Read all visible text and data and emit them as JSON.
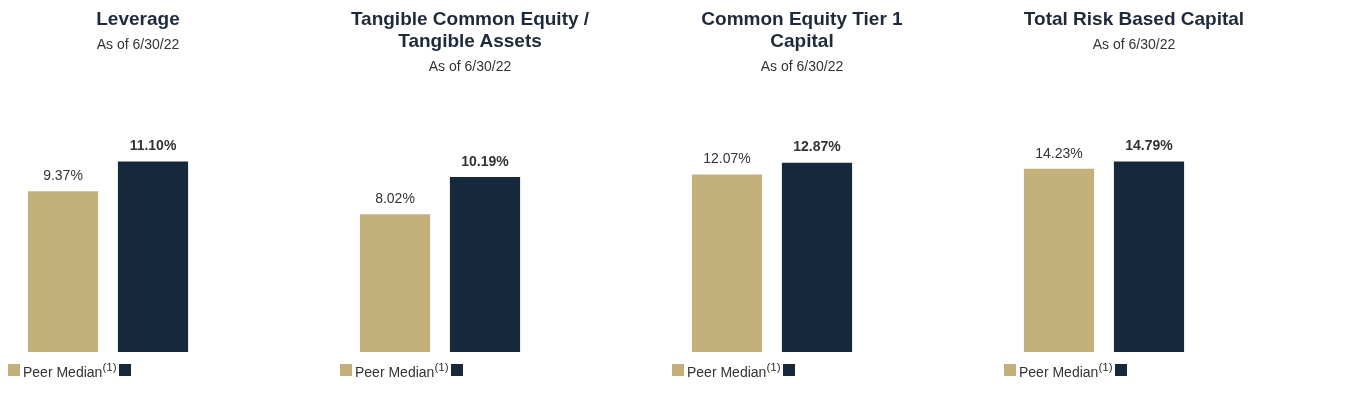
{
  "chart_data": [
    {
      "type": "bar",
      "title": "Leverage",
      "subtitle": "As of 6/30/22",
      "categories": [
        null
      ],
      "legend": "bottom",
      "series": [
        {
          "name": "Peer Median$^{(1)}$",
          "color": "#c3b07a",
          "values": [
            9.37
          ],
          "value_labels": [
            "9.37%"
          ]
        },
        {
          "color": "#16283c",
          "values": [
            11.1
          ],
          "value_labels": [
            "11.10%"
          ]
        }
      ]
    },
    {
      "type": "bar",
      "title": "Tangible Common Equity / Tangible Assets",
      "subtitle": "As of 6/30/22",
      "categories": [
        null
      ],
      "legend": "bottom",
      "series": [
        {
          "name": "Peer Median$^{(1)}$",
          "color": "#c3b07a",
          "values": [
            8.02
          ],
          "value_labels": [
            "8.02%"
          ]
        },
        {
          "color": "#16283c",
          "values": [
            10.19
          ],
          "value_labels": [
            "10.19%"
          ]
        }
      ]
    },
    {
      "type": "bar",
      "title": "Common Equity Tier 1 Capital",
      "subtitle": "As of 6/30/22",
      "categories": [
        null
      ],
      "legend": "bottom",
      "series": [
        {
          "name": "Peer Median$^{(1)}$",
          "color": "#c3b07a",
          "values": [
            12.07
          ],
          "value_labels": [
            "12.07%"
          ]
        },
        {
          "color": "#16283c",
          "values": [
            12.87
          ],
          "value_labels": [
            "12.87%"
          ]
        }
      ]
    },
    {
      "type": "bar",
      "title": "Total Risk Based Capital",
      "subtitle": "As of 6/30/22",
      "categories": [
        null
      ],
      "legend": "bottom",
      "series": [
        {
          "name": "Peer Median$^{(1)}$",
          "color": "#c3b07a",
          "values": [
            14.23
          ],
          "value_labels": [
            "14.23%"
          ]
        },
        {
          "color": "#16283c",
          "values": [
            14.79
          ],
          "value_labels": [
            "14.79%"
          ]
        }
      ]
    }
  ]
}
